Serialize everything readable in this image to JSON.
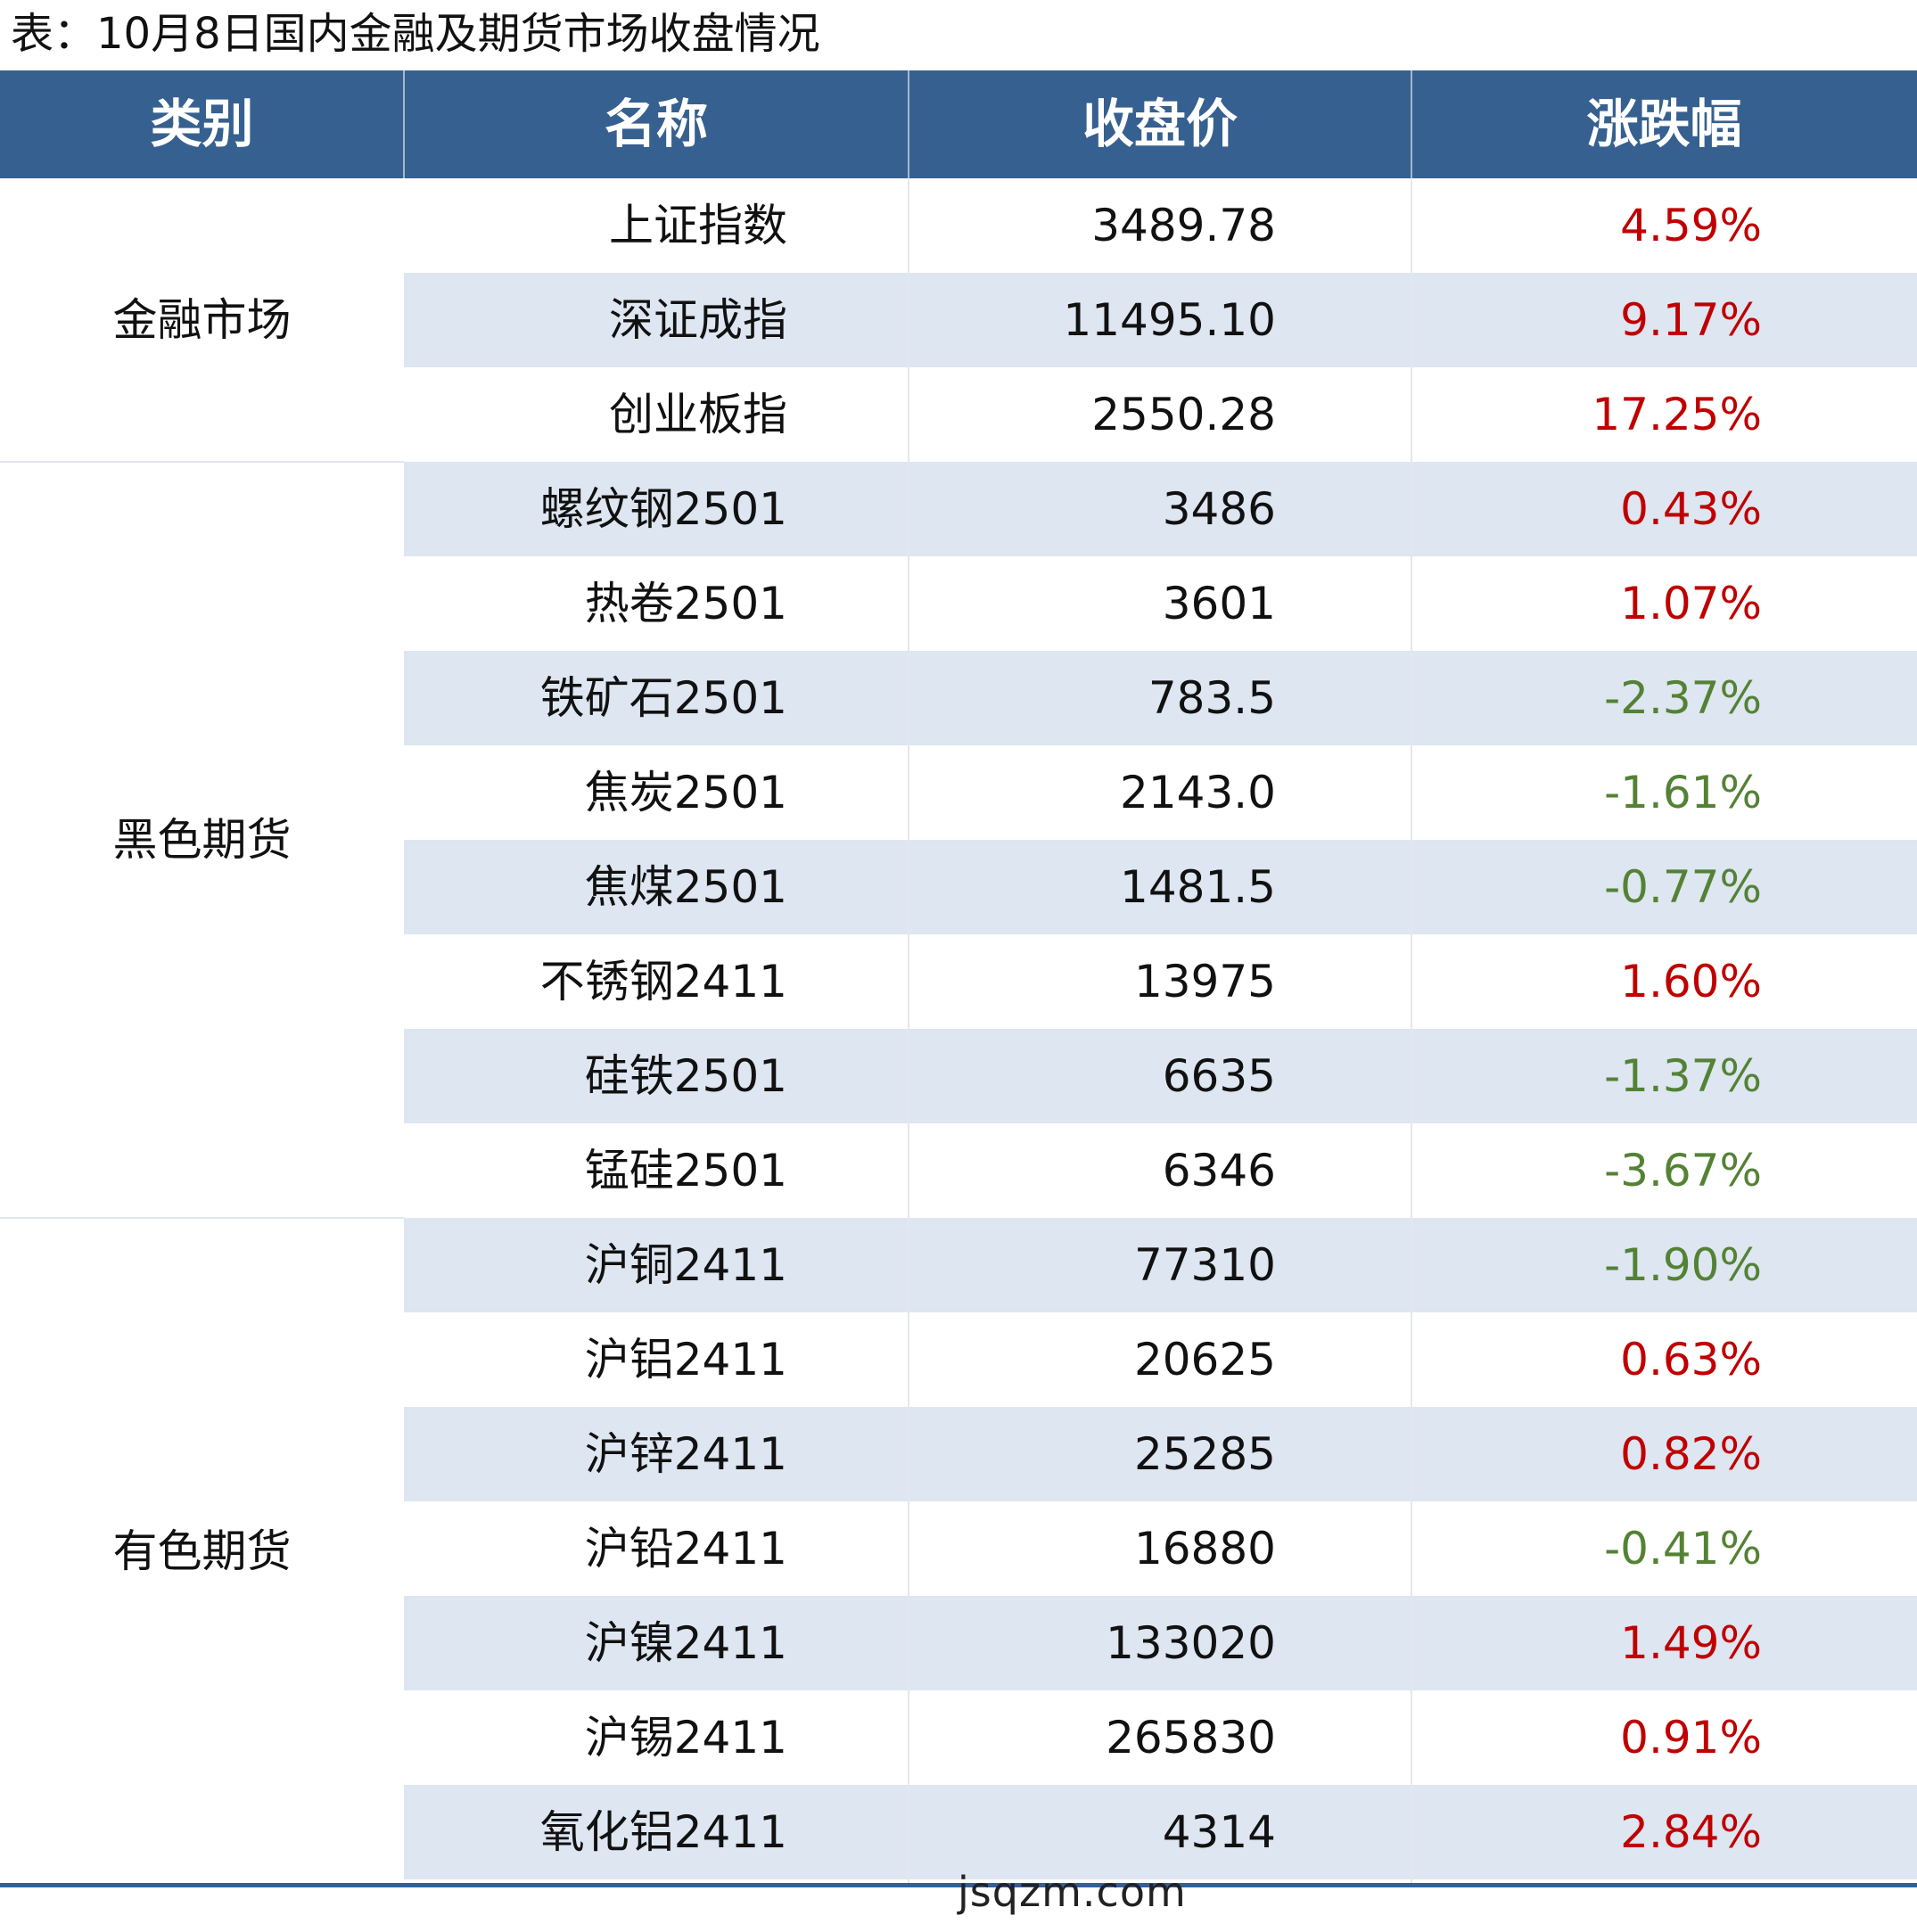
{
  "title": "表：10月8日国内金融及期货市场收盘情况",
  "colors": {
    "header_bg": "#36608f",
    "stripe": "#dde6f1",
    "up": "#c00000",
    "down": "#548235"
  },
  "headers": {
    "category": "类别",
    "name": "名称",
    "price": "收盘价",
    "change": "涨跌幅"
  },
  "categories": [
    "金融市场",
    "黑色期货",
    "有色期货"
  ],
  "rows": [
    {
      "name": "上证指数",
      "price": "3489.78",
      "change": "4.59%",
      "dir": "up"
    },
    {
      "name": "深证成指",
      "price": "11495.10",
      "change": "9.17%",
      "dir": "up"
    },
    {
      "name": "创业板指",
      "price": "2550.28",
      "change": "17.25%",
      "dir": "up"
    },
    {
      "name": "螺纹钢2501",
      "price": "3486",
      "change": "0.43%",
      "dir": "up"
    },
    {
      "name": "热卷2501",
      "price": "3601",
      "change": "1.07%",
      "dir": "up"
    },
    {
      "name": "铁矿石2501",
      "price": "783.5",
      "change": "-2.37%",
      "dir": "down"
    },
    {
      "name": "焦炭2501",
      "price": "2143.0",
      "change": "-1.61%",
      "dir": "down"
    },
    {
      "name": "焦煤2501",
      "price": "1481.5",
      "change": "-0.77%",
      "dir": "down"
    },
    {
      "name": "不锈钢2411",
      "price": "13975",
      "change": "1.60%",
      "dir": "up"
    },
    {
      "name": "硅铁2501",
      "price": "6635",
      "change": "-1.37%",
      "dir": "down"
    },
    {
      "name": "锰硅2501",
      "price": "6346",
      "change": "-3.67%",
      "dir": "down"
    },
    {
      "name": "沪铜2411",
      "price": "77310",
      "change": "-1.90%",
      "dir": "down"
    },
    {
      "name": "沪铝2411",
      "price": "20625",
      "change": "0.63%",
      "dir": "up"
    },
    {
      "name": "沪锌2411",
      "price": "25285",
      "change": "0.82%",
      "dir": "up"
    },
    {
      "name": "沪铅2411",
      "price": "16880",
      "change": "-0.41%",
      "dir": "down"
    },
    {
      "name": "沪镍2411",
      "price": "133020",
      "change": "1.49%",
      "dir": "up"
    },
    {
      "name": "沪锡2411",
      "price": "265830",
      "change": "0.91%",
      "dir": "up"
    },
    {
      "name": "氧化铝2411",
      "price": "4314",
      "change": "2.84%",
      "dir": "up"
    }
  ],
  "watermark": "jsqzm.com"
}
